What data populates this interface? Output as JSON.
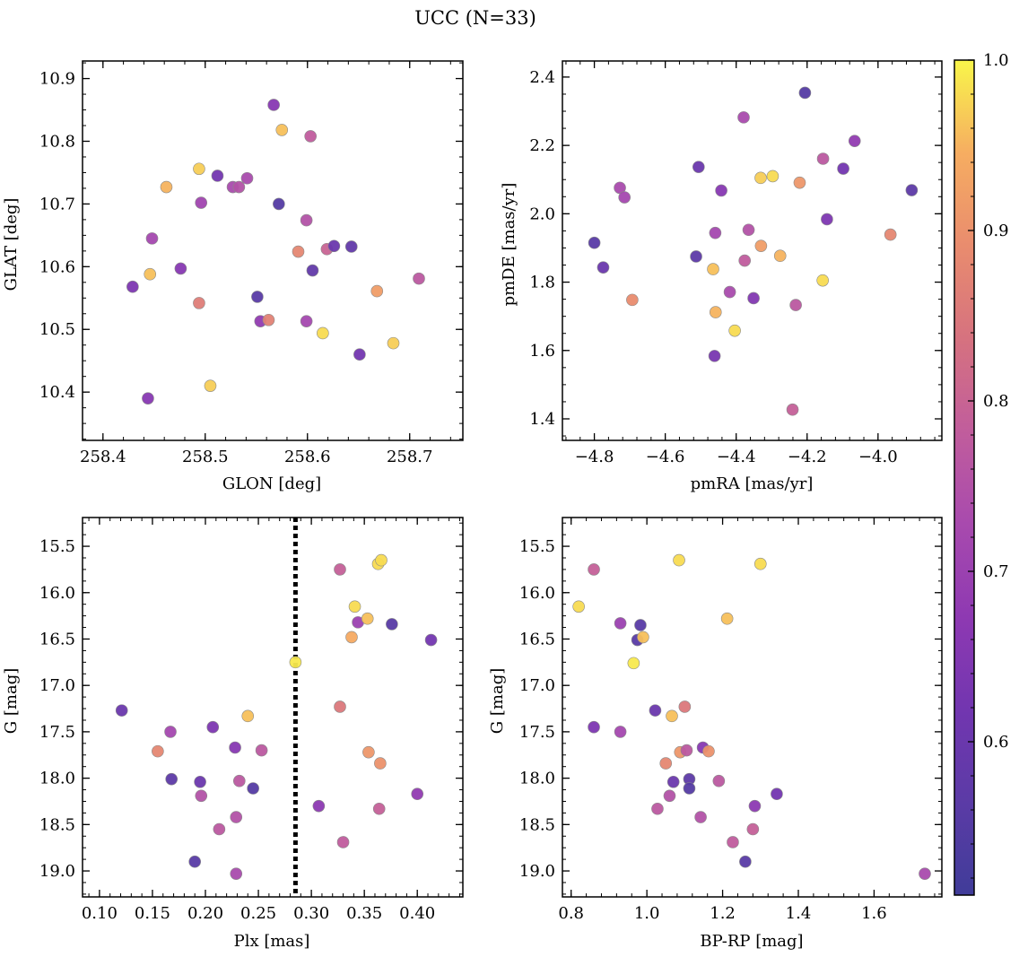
{
  "figure": {
    "title": "UCC (N=33)"
  },
  "colorbar": {
    "colormap": "plasma",
    "min": 0.51,
    "max": 1.0,
    "ticks": [
      0.6,
      0.7,
      0.8,
      0.9,
      1.0
    ],
    "tick_labels": [
      "0.6",
      "0.7",
      "0.8",
      "0.9",
      "1.0"
    ]
  },
  "chart_data": [
    {
      "type": "scatter",
      "name": "glon-glat",
      "xlabel": "GLON [deg]",
      "ylabel": "GLAT [deg]",
      "xlim": [
        258.38,
        258.752
      ],
      "ylim": [
        10.323,
        10.928
      ],
      "inverted_y": false,
      "xticks": [
        258.4,
        258.5,
        258.6,
        258.7
      ],
      "xtick_labels": [
        "258.4",
        "258.5",
        "258.6",
        "258.7"
      ],
      "yticks": [
        10.4,
        10.5,
        10.6,
        10.7,
        10.8,
        10.9
      ],
      "ytick_labels": [
        "10.4",
        "10.5",
        "10.6",
        "10.7",
        "10.8",
        "10.9"
      ],
      "x": [
        258.444,
        258.429,
        258.446,
        258.476,
        258.448,
        258.462,
        258.494,
        258.494,
        258.496,
        258.505,
        258.512,
        258.527,
        258.533,
        258.541,
        258.551,
        258.554,
        258.562,
        258.567,
        258.572,
        258.575,
        258.591,
        258.599,
        258.599,
        258.603,
        258.605,
        258.615,
        258.619,
        258.626,
        258.643,
        258.651,
        258.668,
        258.684,
        258.709
      ],
      "y": [
        10.39,
        10.568,
        10.588,
        10.597,
        10.645,
        10.727,
        10.756,
        10.542,
        10.702,
        10.41,
        10.745,
        10.727,
        10.727,
        10.741,
        10.552,
        10.513,
        10.515,
        10.858,
        10.7,
        10.818,
        10.624,
        10.674,
        10.513,
        10.808,
        10.594,
        10.494,
        10.628,
        10.633,
        10.632,
        10.46,
        10.561,
        10.478,
        10.581
      ],
      "c": [
        0.66,
        0.64,
        0.96,
        0.66,
        0.72,
        0.95,
        0.97,
        0.86,
        0.71,
        0.97,
        0.62,
        0.73,
        0.75,
        0.73,
        0.56,
        0.68,
        0.87,
        0.66,
        0.55,
        0.96,
        0.88,
        0.75,
        0.72,
        0.78,
        0.58,
        0.98,
        0.8,
        0.6,
        0.58,
        0.62,
        0.92,
        0.97,
        0.77
      ]
    },
    {
      "type": "scatter",
      "name": "pmra-pmde",
      "xlabel": "pmRA [mas/yr]",
      "ylabel": "pmDE [mas/yr]",
      "xlim": [
        -4.89,
        -3.82
      ],
      "ylim": [
        1.337,
        2.447
      ],
      "inverted_y": false,
      "xticks": [
        -4.8,
        -4.6,
        -4.4,
        -4.2,
        -4.0
      ],
      "xtick_labels": [
        "−4.8",
        "−4.6",
        "−4.4",
        "−4.2",
        "−4.0"
      ],
      "yticks": [
        1.4,
        1.6,
        1.8,
        2.0,
        2.2,
        2.4
      ],
      "ytick_labels": [
        "1.4",
        "1.6",
        "1.8",
        "2.0",
        "2.2",
        "2.4"
      ],
      "x": [
        -4.8,
        -4.775,
        -4.728,
        -4.715,
        -4.693,
        -4.513,
        -4.506,
        -4.465,
        -4.461,
        -4.459,
        -4.458,
        -4.442,
        -4.418,
        -4.404,
        -4.379,
        -4.376,
        -4.365,
        -4.351,
        -4.331,
        -4.33,
        -4.297,
        -4.276,
        -4.241,
        -4.232,
        -4.221,
        -4.206,
        -4.156,
        -4.155,
        -4.144,
        -4.098,
        -4.066,
        -3.965,
        -3.905
      ],
      "y": [
        1.915,
        1.843,
        2.076,
        2.048,
        1.748,
        1.875,
        2.137,
        1.838,
        1.584,
        1.944,
        1.712,
        2.068,
        1.771,
        1.658,
        2.282,
        1.863,
        1.953,
        1.753,
        2.105,
        1.906,
        2.11,
        1.877,
        1.427,
        1.733,
        2.091,
        2.354,
        1.805,
        2.161,
        1.984,
        2.132,
        2.213,
        1.939,
        2.069
      ],
      "c": [
        0.56,
        0.6,
        0.73,
        0.72,
        0.89,
        0.57,
        0.6,
        0.96,
        0.63,
        0.72,
        0.95,
        0.66,
        0.73,
        0.98,
        0.73,
        0.78,
        0.75,
        0.65,
        0.97,
        0.92,
        0.98,
        0.95,
        0.79,
        0.77,
        0.91,
        0.55,
        0.98,
        0.77,
        0.64,
        0.62,
        0.68,
        0.88,
        0.57
      ]
    },
    {
      "type": "scatter",
      "name": "plx-g",
      "xlabel": "Plx [mas]",
      "ylabel": "G [mag]",
      "xlim": [
        0.084,
        0.443
      ],
      "ylim": [
        15.19,
        19.28
      ],
      "inverted_y": true,
      "vline": 0.285,
      "xticks": [
        0.1,
        0.15,
        0.2,
        0.25,
        0.3,
        0.35,
        0.4
      ],
      "xtick_labels": [
        "0.10",
        "0.15",
        "0.20",
        "0.25",
        "0.30",
        "0.35",
        "0.40"
      ],
      "yticks": [
        15.5,
        16.0,
        16.5,
        17.0,
        17.5,
        18.0,
        18.5,
        19.0
      ],
      "ytick_labels": [
        "15.5",
        "16.0",
        "16.5",
        "17.0",
        "17.5",
        "18.0",
        "18.5",
        "19.0"
      ],
      "x": [
        0.121,
        0.155,
        0.167,
        0.168,
        0.19,
        0.195,
        0.196,
        0.207,
        0.213,
        0.228,
        0.229,
        0.229,
        0.232,
        0.24,
        0.245,
        0.253,
        0.285,
        0.307,
        0.327,
        0.327,
        0.33,
        0.338,
        0.341,
        0.344,
        0.353,
        0.354,
        0.363,
        0.364,
        0.365,
        0.366,
        0.376,
        0.4,
        0.413
      ],
      "y": [
        17.27,
        17.71,
        17.5,
        18.01,
        18.9,
        18.04,
        18.19,
        17.45,
        18.55,
        17.67,
        18.42,
        19.03,
        18.03,
        17.33,
        18.11,
        17.7,
        16.75,
        18.3,
        17.23,
        15.75,
        18.69,
        16.48,
        16.15,
        16.32,
        16.28,
        17.72,
        15.69,
        18.33,
        17.84,
        15.65,
        16.34,
        18.17,
        16.51
      ],
      "c": [
        0.6,
        0.88,
        0.72,
        0.57,
        0.56,
        0.6,
        0.75,
        0.64,
        0.77,
        0.66,
        0.75,
        0.73,
        0.77,
        0.96,
        0.55,
        0.77,
        0.99,
        0.67,
        0.85,
        0.79,
        0.78,
        0.94,
        0.98,
        0.7,
        0.96,
        0.91,
        0.98,
        0.79,
        0.9,
        0.98,
        0.56,
        0.68,
        0.62
      ]
    },
    {
      "type": "scatter",
      "name": "bprp-g",
      "xlabel": "BP-RP [mag]",
      "ylabel": "G [mag]",
      "xlim": [
        0.777,
        1.779
      ],
      "ylim": [
        15.19,
        19.28
      ],
      "inverted_y": true,
      "xticks": [
        0.8,
        1.0,
        1.2,
        1.4,
        1.6
      ],
      "xtick_labels": [
        "0.8",
        "1.0",
        "1.2",
        "1.4",
        "1.6"
      ],
      "yticks": [
        15.5,
        16.0,
        16.5,
        17.0,
        17.5,
        18.0,
        18.5,
        19.0
      ],
      "ytick_labels": [
        "15.5",
        "16.0",
        "16.5",
        "17.0",
        "17.5",
        "18.0",
        "18.5",
        "19.0"
      ],
      "x": [
        0.82,
        0.86,
        0.86,
        0.93,
        0.93,
        0.965,
        0.975,
        0.983,
        0.99,
        1.022,
        1.028,
        1.05,
        1.06,
        1.066,
        1.07,
        1.085,
        1.088,
        1.1,
        1.105,
        1.112,
        1.112,
        1.142,
        1.148,
        1.163,
        1.19,
        1.212,
        1.227,
        1.26,
        1.28,
        1.285,
        1.3,
        1.343,
        1.734
      ],
      "y": [
        16.15,
        15.75,
        17.45,
        16.33,
        17.5,
        16.76,
        16.51,
        16.35,
        16.48,
        17.27,
        18.33,
        17.84,
        18.19,
        17.33,
        18.04,
        15.65,
        17.72,
        17.23,
        17.7,
        18.01,
        18.11,
        18.42,
        17.67,
        17.71,
        18.03,
        16.28,
        18.69,
        18.9,
        18.55,
        18.3,
        15.69,
        18.17,
        19.03
      ],
      "c": [
        0.98,
        0.79,
        0.64,
        0.7,
        0.72,
        0.99,
        0.56,
        0.56,
        0.96,
        0.6,
        0.77,
        0.88,
        0.75,
        0.96,
        0.6,
        0.98,
        0.91,
        0.85,
        0.77,
        0.57,
        0.55,
        0.75,
        0.66,
        0.9,
        0.77,
        0.96,
        0.78,
        0.56,
        0.79,
        0.67,
        0.98,
        0.62,
        0.73
      ]
    }
  ]
}
